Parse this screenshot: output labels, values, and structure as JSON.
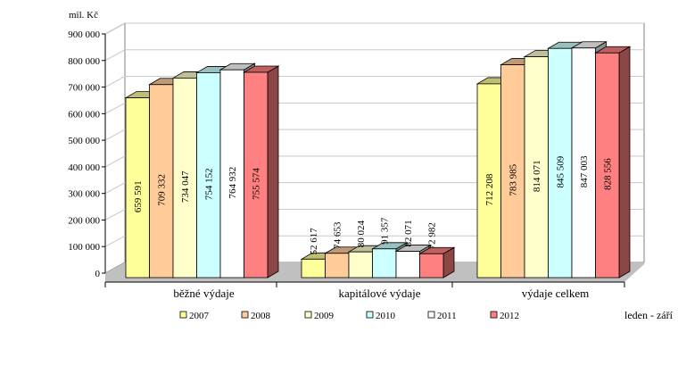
{
  "chart_data": {
    "type": "bar",
    "title": "",
    "ylabel": "mil. Kč",
    "xlabel": "",
    "note": "leden - září",
    "ylim": [
      0,
      900000
    ],
    "yticks": [
      0,
      100000,
      200000,
      300000,
      400000,
      500000,
      600000,
      700000,
      800000,
      900000
    ],
    "ytick_labels": [
      "0",
      "100 000",
      "200 000",
      "300 000",
      "400 000",
      "500 000",
      "600 000",
      "700 000",
      "800 000",
      "900 000"
    ],
    "categories": [
      "běžné výdaje",
      "kapitálové výdaje",
      "výdaje celkem"
    ],
    "grid": true,
    "legend_position": "bottom",
    "series": [
      {
        "name": "2007",
        "color": "#FFFF99",
        "values": [
          659591,
          52617,
          712208
        ],
        "labels": [
          "659 591",
          "52 617",
          "712 208"
        ]
      },
      {
        "name": "2008",
        "color": "#FFCC99",
        "values": [
          709332,
          74653,
          783985
        ],
        "labels": [
          "709 332",
          "74 653",
          "783 985"
        ]
      },
      {
        "name": "2009",
        "color": "#FFFFCC",
        "values": [
          734047,
          80024,
          814071
        ],
        "labels": [
          "734 047",
          "80 024",
          "814 071"
        ]
      },
      {
        "name": "2010",
        "color": "#CCFFFF",
        "values": [
          754152,
          91357,
          845509
        ],
        "labels": [
          "754 152",
          "91 357",
          "845 509"
        ]
      },
      {
        "name": "2011",
        "color": "#FFFFFF",
        "values": [
          764932,
          82071,
          847003
        ],
        "labels": [
          "764 932",
          "82 071",
          "847 003"
        ]
      },
      {
        "name": "2012",
        "color": "#FF8080",
        "values": [
          755574,
          72982,
          828556
        ],
        "labels": [
          "755 574",
          "72 982",
          "828 556"
        ]
      }
    ]
  }
}
